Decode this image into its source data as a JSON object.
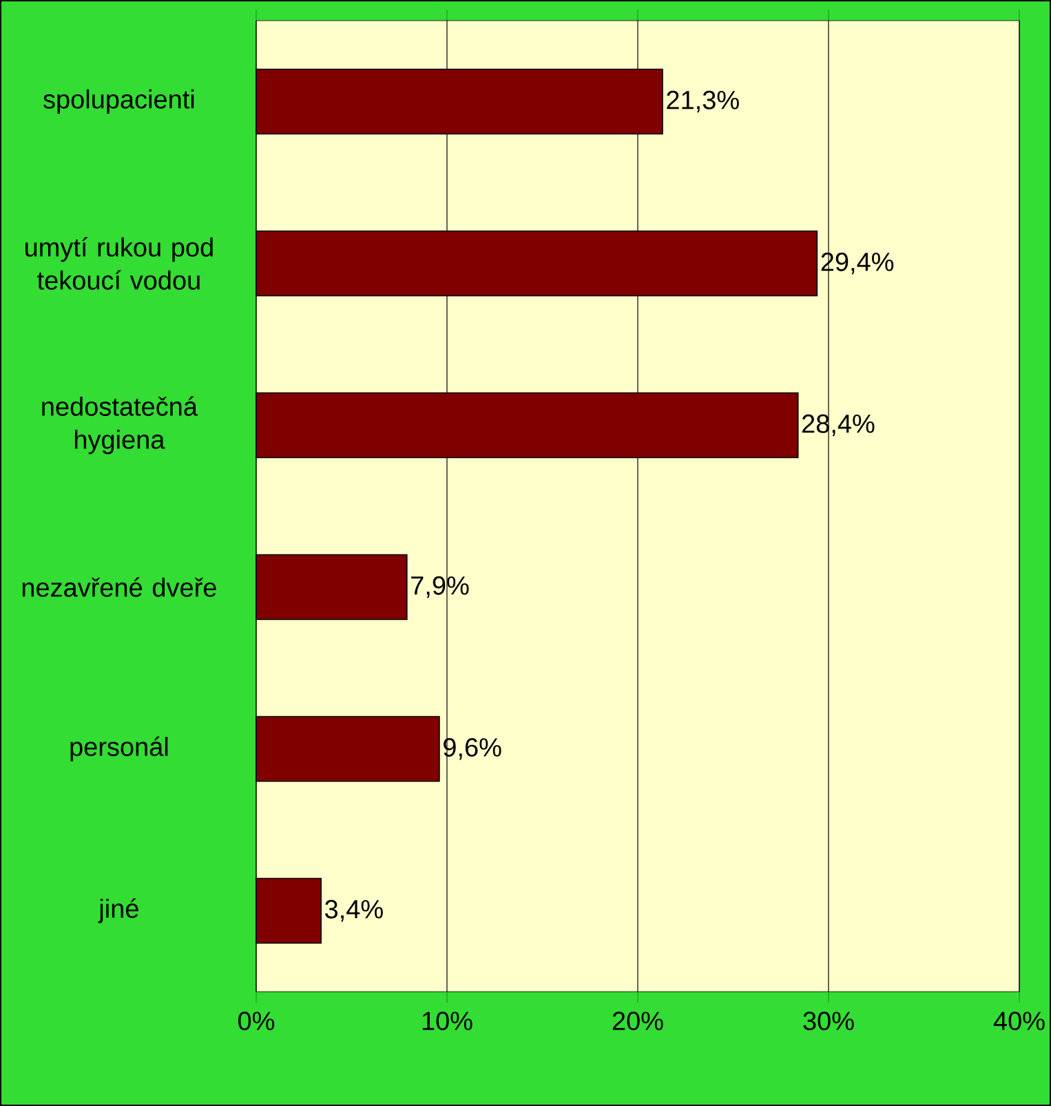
{
  "chart_data": {
    "type": "bar",
    "orientation": "horizontal",
    "categories": [
      "spolupacienti",
      "umytí rukou pod tekoucí vodou",
      "nedostatečná hygiena",
      "nezavřené dveře",
      "personál",
      "jiné"
    ],
    "values": [
      21.3,
      29.4,
      28.4,
      7.9,
      9.6,
      3.4
    ],
    "value_labels": [
      "21,3%",
      "29,4%",
      "28,4%",
      "7,9%",
      "9,6%",
      "3,4%"
    ],
    "color": "#800000",
    "xlim": [
      0,
      40
    ],
    "xticks": [
      {
        "value": 0,
        "label": "0%"
      },
      {
        "value": 10,
        "label": "10%"
      },
      {
        "value": 20,
        "label": "20%"
      },
      {
        "value": 30,
        "label": "30%"
      },
      {
        "value": 40,
        "label": "40%"
      }
    ],
    "grid": "x"
  }
}
